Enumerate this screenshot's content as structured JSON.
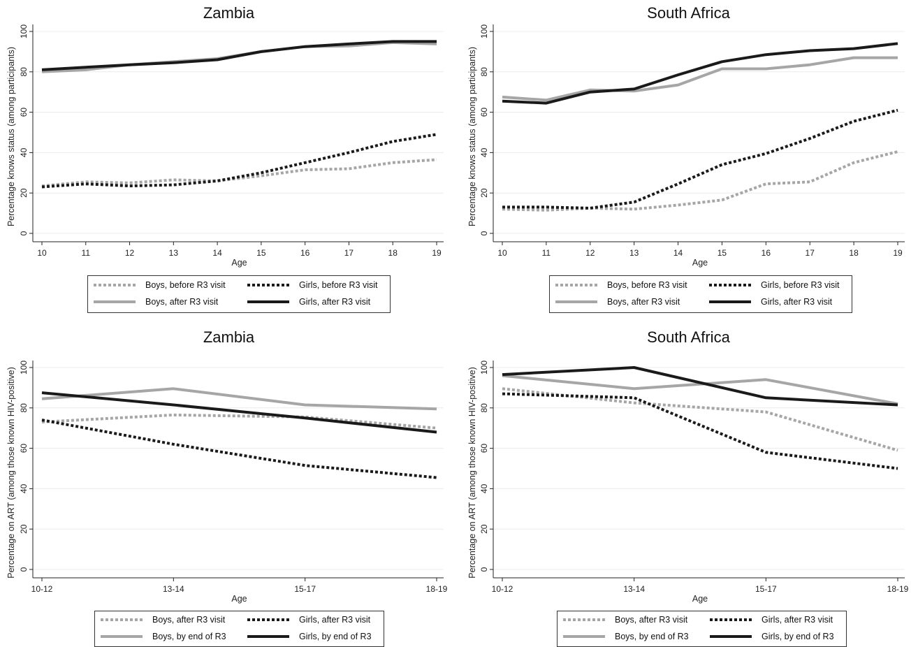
{
  "colors": {
    "light": "#a6a6a6",
    "dark": "#1a1a1a"
  },
  "chart_data": [
    {
      "type": "line",
      "title": "Zambia",
      "xlabel": "Age",
      "ylabel": "Percentage knows status (among participants)",
      "categories": [
        "10",
        "11",
        "12",
        "13",
        "14",
        "15",
        "16",
        "17",
        "18",
        "19"
      ],
      "ylim": [
        0,
        100
      ],
      "yticks": [
        "0",
        "20",
        "40",
        "60",
        "80",
        "100"
      ],
      "series": [
        {
          "name": "Boys, before R3 visit",
          "color": "light",
          "dash": "dotted",
          "values": [
            23.5,
            25.5,
            25,
            26.5,
            26,
            28.5,
            31.5,
            32,
            35,
            36.5
          ]
        },
        {
          "name": "Girls, before R3 visit",
          "color": "dark",
          "dash": "dotted",
          "values": [
            23,
            24.5,
            23.5,
            24,
            26,
            30,
            35,
            40,
            45.5,
            49
          ]
        },
        {
          "name": "Boys, after R3 visit",
          "color": "light",
          "dash": "solid",
          "values": [
            80,
            81,
            83.5,
            85,
            86.5,
            90,
            92.5,
            92.8,
            94.5,
            93.8
          ]
        },
        {
          "name": "Girls, after R3 visit",
          "color": "dark",
          "dash": "solid",
          "values": [
            81,
            82.3,
            83.5,
            84.5,
            86,
            90,
            92.5,
            93.8,
            95,
            95
          ]
        }
      ],
      "legend": [
        "Boys, before R3 visit",
        "Girls, before R3 visit",
        "Boys, after R3 visit",
        "Girls, after R3 visit"
      ]
    },
    {
      "type": "line",
      "title": "South Africa",
      "xlabel": "Age",
      "ylabel": "Percentage knows status (among participants)",
      "categories": [
        "10",
        "11",
        "12",
        "13",
        "14",
        "15",
        "16",
        "17",
        "18",
        "19"
      ],
      "ylim": [
        0,
        100
      ],
      "yticks": [
        "0",
        "20",
        "40",
        "60",
        "80",
        "100"
      ],
      "series": [
        {
          "name": "Boys, before R3 visit",
          "color": "light",
          "dash": "dotted",
          "values": [
            12,
            11.5,
            12.5,
            12,
            14,
            16.5,
            24.5,
            25.5,
            35,
            40.5
          ]
        },
        {
          "name": "Girls, before R3 visit",
          "color": "dark",
          "dash": "dotted",
          "values": [
            13,
            13,
            12.5,
            15.5,
            24.5,
            34,
            39.5,
            47,
            55.5,
            61
          ]
        },
        {
          "name": "Boys, after R3 visit",
          "color": "light",
          "dash": "solid",
          "values": [
            67.5,
            66,
            71,
            70.5,
            73.5,
            81.5,
            81.5,
            83.5,
            87,
            87
          ]
        },
        {
          "name": "Girls, after R3 visit",
          "color": "dark",
          "dash": "solid",
          "values": [
            65.5,
            64.5,
            70,
            71.5,
            78.5,
            85,
            88.5,
            90.5,
            91.5,
            94
          ]
        }
      ],
      "legend": [
        "Boys, before R3 visit",
        "Girls, before R3 visit",
        "Boys, after R3 visit",
        "Girls, after R3 visit"
      ]
    },
    {
      "type": "line",
      "title": "Zambia",
      "xlabel": "Age",
      "ylabel": "Percentage on ART (among those known HIV-positive)",
      "categories": [
        "10-12",
        "13-14",
        "15-17",
        "18-19"
      ],
      "ylim": [
        0,
        100
      ],
      "yticks": [
        "0",
        "20",
        "40",
        "60",
        "80",
        "100"
      ],
      "series": [
        {
          "name": "Boys, after R3 visit",
          "color": "light",
          "dash": "dotted",
          "values": [
            73,
            76.5,
            75.5,
            70
          ]
        },
        {
          "name": "Girls, after R3 visit",
          "color": "dark",
          "dash": "dotted",
          "values": [
            74,
            62,
            51.5,
            45.5
          ]
        },
        {
          "name": "Boys, by end of R3",
          "color": "light",
          "dash": "solid",
          "values": [
            84.5,
            89.5,
            81.5,
            79.5
          ]
        },
        {
          "name": "Girls, by end of R3",
          "color": "dark",
          "dash": "solid",
          "values": [
            87.5,
            81.5,
            75,
            68
          ]
        }
      ],
      "legend": [
        "Boys, after R3 visit",
        "Girls, after R3 visit",
        "Boys, by end of R3",
        "Girls, by end of R3"
      ]
    },
    {
      "type": "line",
      "title": "South Africa",
      "xlabel": "Age",
      "ylabel": "Percentage on ART (among those known HIV-positive)",
      "categories": [
        "10-12",
        "13-14",
        "15-17",
        "18-19"
      ],
      "ylim": [
        0,
        100
      ],
      "yticks": [
        "0",
        "20",
        "40",
        "60",
        "80",
        "100"
      ],
      "series": [
        {
          "name": "Boys, after R3 visit",
          "color": "light",
          "dash": "dotted",
          "values": [
            89.5,
            82.5,
            78,
            59
          ]
        },
        {
          "name": "Girls, after R3 visit",
          "color": "dark",
          "dash": "dotted",
          "values": [
            87,
            85,
            58,
            50
          ]
        },
        {
          "name": "Boys, by end of R3",
          "color": "light",
          "dash": "solid",
          "values": [
            96,
            89.5,
            94,
            82
          ]
        },
        {
          "name": "Girls, by end of R3",
          "color": "dark",
          "dash": "solid",
          "values": [
            96.5,
            100,
            85,
            81.5
          ]
        }
      ],
      "legend": [
        "Boys, after R3 visit",
        "Girls, after R3 visit",
        "Boys, by end of R3",
        "Girls, by end of R3"
      ]
    }
  ]
}
